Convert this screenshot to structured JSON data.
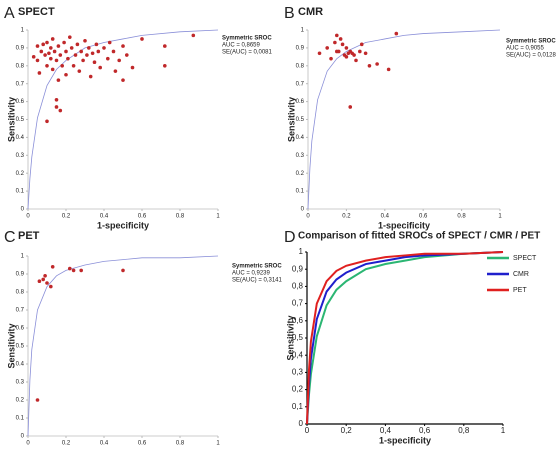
{
  "chart_data": [
    {
      "type": "scatter",
      "panel_label": "A",
      "title": "SPECT",
      "x_label": "1-specificity",
      "y_label": "Sensitivity",
      "annotation": [
        "Symmetric SROC",
        "AUC = 0,8659",
        "SE(AUC) = 0,0081"
      ],
      "color": "#c0282a",
      "curve_color": "#8a8fd8",
      "x": [
        0.03,
        0.05,
        0.05,
        0.06,
        0.07,
        0.08,
        0.09,
        0.1,
        0.1,
        0.11,
        0.12,
        0.12,
        0.13,
        0.13,
        0.14,
        0.15,
        0.16,
        0.16,
        0.17,
        0.18,
        0.19,
        0.2,
        0.2,
        0.21,
        0.22,
        0.23,
        0.24,
        0.25,
        0.26,
        0.27,
        0.28,
        0.29,
        0.3,
        0.31,
        0.32,
        0.33,
        0.34,
        0.35,
        0.36,
        0.37,
        0.38,
        0.4,
        0.42,
        0.43,
        0.45,
        0.46,
        0.48,
        0.5,
        0.5,
        0.52,
        0.55,
        0.6,
        0.72,
        0.72,
        0.87,
        0.15,
        0.15,
        0.17,
        0.1
      ],
      "values": [
        0.85,
        0.91,
        0.83,
        0.76,
        0.88,
        0.92,
        0.86,
        0.8,
        0.93,
        0.87,
        0.84,
        0.9,
        0.78,
        0.95,
        0.88,
        0.83,
        0.91,
        0.72,
        0.86,
        0.8,
        0.93,
        0.88,
        0.75,
        0.84,
        0.96,
        0.9,
        0.8,
        0.86,
        0.92,
        0.77,
        0.88,
        0.83,
        0.94,
        0.86,
        0.9,
        0.74,
        0.87,
        0.82,
        0.92,
        0.88,
        0.79,
        0.9,
        0.84,
        0.93,
        0.88,
        0.77,
        0.83,
        0.91,
        0.72,
        0.86,
        0.79,
        0.95,
        0.91,
        0.8,
        0.97,
        0.61,
        0.57,
        0.55,
        0.49
      ],
      "curve_x": [
        0,
        0.01,
        0.02,
        0.05,
        0.1,
        0.15,
        0.2,
        0.3,
        0.4,
        0.5,
        0.6,
        0.8,
        1
      ],
      "curve_values": [
        0,
        0.17,
        0.29,
        0.51,
        0.69,
        0.78,
        0.83,
        0.9,
        0.93,
        0.95,
        0.97,
        0.99,
        1
      ],
      "xlim": [
        0,
        1
      ],
      "ylim": [
        0,
        1
      ],
      "xticks": [
        0,
        0.2,
        0.4,
        0.6,
        0.8,
        1
      ],
      "yticks": [
        0,
        0.1,
        0.2,
        0.3,
        0.4,
        0.5,
        0.6,
        0.7,
        0.8,
        0.9,
        1
      ]
    },
    {
      "type": "scatter",
      "panel_label": "B",
      "title": "CMR",
      "x_label": "1-specificity",
      "y_label": "Sensitivity",
      "annotation": [
        "Symmetric SROC",
        "AUC = 0,9055",
        "SE(AUC) = 0,0128"
      ],
      "color": "#c0282a",
      "curve_color": "#8a8fd8",
      "x": [
        0.06,
        0.1,
        0.12,
        0.14,
        0.15,
        0.16,
        0.17,
        0.18,
        0.19,
        0.2,
        0.21,
        0.22,
        0.23,
        0.24,
        0.25,
        0.27,
        0.28,
        0.3,
        0.32,
        0.36,
        0.42,
        0.46,
        0.22,
        0.15,
        0.2
      ],
      "values": [
        0.87,
        0.9,
        0.84,
        0.93,
        0.97,
        0.88,
        0.95,
        0.92,
        0.86,
        0.9,
        0.87,
        0.88,
        0.87,
        0.86,
        0.83,
        0.88,
        0.92,
        0.87,
        0.8,
        0.81,
        0.78,
        0.98,
        0.57,
        0.88,
        0.85
      ],
      "curve_x": [
        0,
        0.01,
        0.02,
        0.05,
        0.1,
        0.15,
        0.2,
        0.3,
        0.4,
        0.5,
        0.6,
        0.8,
        1
      ],
      "curve_values": [
        0,
        0.23,
        0.38,
        0.61,
        0.77,
        0.84,
        0.88,
        0.93,
        0.95,
        0.97,
        0.98,
        0.99,
        1
      ],
      "xlim": [
        0,
        1
      ],
      "ylim": [
        0,
        1
      ],
      "xticks": [
        0,
        0.2,
        0.4,
        0.6,
        0.8,
        1
      ],
      "yticks": [
        0,
        0.1,
        0.2,
        0.3,
        0.4,
        0.5,
        0.6,
        0.7,
        0.8,
        0.9,
        1
      ]
    },
    {
      "type": "scatter",
      "panel_label": "C",
      "title": "PET",
      "x_label": "1-specificity",
      "y_label": "Sensitivity",
      "annotation": [
        "Symmetric SROC",
        "AUC = 0,9239",
        "SE(AUC) = 0,3141"
      ],
      "color": "#c0282a",
      "curve_color": "#8a8fd8",
      "x": [
        0.05,
        0.06,
        0.08,
        0.09,
        0.1,
        0.12,
        0.13,
        0.22,
        0.24,
        0.28,
        0.5
      ],
      "values": [
        0.2,
        0.86,
        0.87,
        0.89,
        0.85,
        0.83,
        0.94,
        0.93,
        0.92,
        0.92,
        0.92
      ],
      "curve_x": [
        0,
        0.01,
        0.02,
        0.05,
        0.1,
        0.15,
        0.2,
        0.3,
        0.4,
        0.5,
        0.6,
        0.8,
        1
      ],
      "curve_values": [
        0,
        0.31,
        0.48,
        0.7,
        0.83,
        0.89,
        0.92,
        0.95,
        0.97,
        0.98,
        0.99,
        0.99,
        1
      ],
      "xlim": [
        0,
        1
      ],
      "ylim": [
        0,
        1
      ],
      "xticks": [
        0,
        0.2,
        0.4,
        0.6,
        0.8,
        1
      ],
      "yticks": [
        0,
        0.1,
        0.2,
        0.3,
        0.4,
        0.5,
        0.6,
        0.7,
        0.8,
        0.9,
        1
      ]
    },
    {
      "type": "line",
      "panel_label": "D",
      "title": "Comparison of fitted SROCs of SPECT / CMR / PET",
      "x_label": "1-specificity",
      "y_label": "Sensitivity",
      "x": [
        0,
        0.01,
        0.02,
        0.05,
        0.1,
        0.15,
        0.2,
        0.3,
        0.4,
        0.5,
        0.6,
        0.8,
        1
      ],
      "series": [
        {
          "name": "SPECT",
          "color": "#2bb673",
          "values": [
            0,
            0.17,
            0.29,
            0.51,
            0.69,
            0.78,
            0.83,
            0.9,
            0.93,
            0.95,
            0.97,
            0.99,
            1
          ]
        },
        {
          "name": "CMR",
          "color": "#1f1fcc",
          "values": [
            0,
            0.23,
            0.38,
            0.61,
            0.77,
            0.84,
            0.88,
            0.93,
            0.95,
            0.97,
            0.98,
            0.99,
            1
          ]
        },
        {
          "name": "PET",
          "color": "#e0201f",
          "values": [
            0,
            0.31,
            0.48,
            0.7,
            0.83,
            0.89,
            0.92,
            0.95,
            0.97,
            0.98,
            0.99,
            0.99,
            1
          ]
        }
      ],
      "xlim": [
        0,
        1
      ],
      "ylim": [
        0,
        1
      ],
      "xticks": [
        0,
        {
          "value": 0.2,
          "label": "0,2"
        },
        {
          "value": 0.4,
          "label": "0,4"
        },
        {
          "value": 0.6,
          "label": "0,6"
        },
        {
          "value": 0.8,
          "label": "0,8"
        },
        1
      ],
      "yticks": [
        0,
        {
          "value": 0.1,
          "label": "0,1"
        },
        {
          "value": 0.2,
          "label": "0,2"
        },
        {
          "value": 0.3,
          "label": "0,3"
        },
        {
          "value": 0.4,
          "label": "0,4"
        },
        {
          "value": 0.5,
          "label": "0,5"
        },
        {
          "value": 0.6,
          "label": "0,6"
        },
        {
          "value": 0.7,
          "label": "0,7"
        },
        {
          "value": 0.8,
          "label": "0,8"
        },
        {
          "value": 0.9,
          "label": "0,9"
        },
        1
      ]
    }
  ]
}
